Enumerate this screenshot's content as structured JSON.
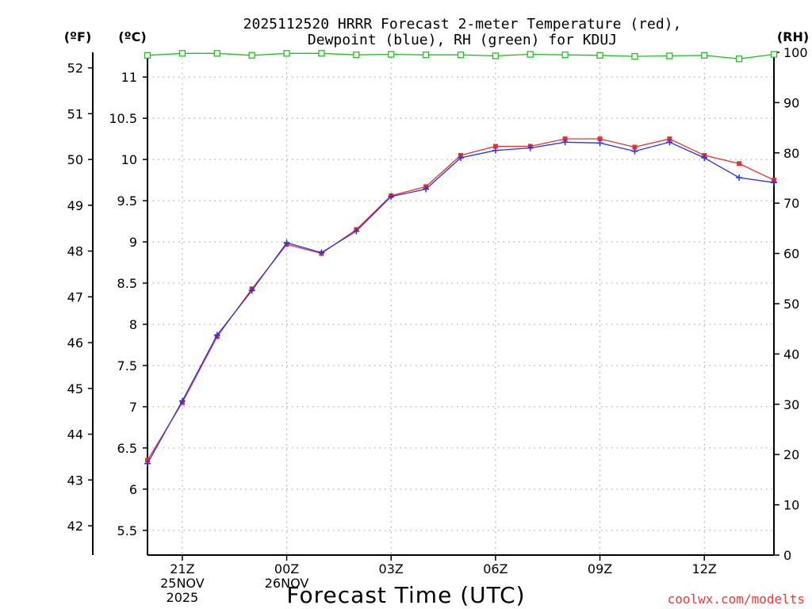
{
  "chart_data": {
    "type": "line",
    "title": "2025112520 HRRR Forecast 2-meter Temperature (red),",
    "subtitle": "Dewpoint (blue), RH (green) for KDUJ",
    "xlabel": "Forecast Time (UTC)",
    "credit": "coolwx.com/modelts",
    "units": {
      "fahrenheit": "(ºF)",
      "celsius": "(ºC)",
      "rh": "(RH)"
    },
    "x": [
      20,
      21,
      22,
      23,
      24,
      25,
      26,
      27,
      28,
      29,
      30,
      31,
      32,
      33,
      34,
      35,
      36,
      37,
      38
    ],
    "xlim": [
      20,
      38
    ],
    "x_ticks": [
      {
        "x": 21,
        "lines": [
          "21Z",
          "25NOV",
          "2025"
        ]
      },
      {
        "x": 24,
        "lines": [
          "00Z",
          "26NOV"
        ]
      },
      {
        "x": 27,
        "lines": [
          "03Z"
        ]
      },
      {
        "x": 30,
        "lines": [
          "06Z"
        ]
      },
      {
        "x": 33,
        "lines": [
          "09Z"
        ]
      },
      {
        "x": 36,
        "lines": [
          "12Z"
        ]
      }
    ],
    "y_celsius": {
      "lim": [
        5.2,
        11.3
      ],
      "ticks": [
        5.5,
        6,
        6.5,
        7,
        7.5,
        8,
        8.5,
        9,
        9.5,
        10,
        10.5,
        11
      ],
      "labels": [
        "5.5",
        "6",
        "6.5",
        "7",
        "7.5",
        "8",
        "8.5",
        "9",
        "9.5",
        "10",
        "10.5",
        "11"
      ]
    },
    "y_fahrenheit": {
      "ticks": [
        42,
        43,
        44,
        45,
        46,
        47,
        48,
        49,
        50,
        51,
        52
      ],
      "labels": [
        "42",
        "43",
        "44",
        "45",
        "46",
        "47",
        "48",
        "49",
        "50",
        "51",
        "52"
      ]
    },
    "y_rh": {
      "lim": [
        0,
        100
      ],
      "ticks": [
        0,
        10,
        20,
        30,
        40,
        50,
        60,
        70,
        80,
        90,
        100
      ],
      "labels": [
        "0",
        "10",
        "20",
        "30",
        "40",
        "50",
        "60",
        "70",
        "80",
        "90",
        "100"
      ]
    },
    "series": [
      {
        "name": "Temperature",
        "axis": "celsius",
        "color": "#e83030",
        "marker": "square",
        "values": [
          6.35,
          7.05,
          7.85,
          8.43,
          8.97,
          8.86,
          9.15,
          9.56,
          9.67,
          10.05,
          10.16,
          10.16,
          10.25,
          10.25,
          10.15,
          10.25,
          10.05,
          9.95,
          9.75
        ]
      },
      {
        "name": "Dewpoint",
        "axis": "celsius",
        "color": "#2436e0",
        "marker": "plus",
        "values": [
          6.31,
          7.07,
          7.87,
          8.41,
          8.99,
          8.87,
          9.13,
          9.55,
          9.64,
          10.02,
          10.11,
          10.14,
          10.21,
          10.2,
          10.1,
          10.21,
          10.02,
          9.78,
          9.72
        ]
      },
      {
        "name": "RH",
        "axis": "rh",
        "color": "#21c021",
        "marker": "open-square",
        "values": [
          99.4,
          99.8,
          99.8,
          99.4,
          99.8,
          99.8,
          99.5,
          99.6,
          99.5,
          99.5,
          99.3,
          99.6,
          99.5,
          99.4,
          99.2,
          99.3,
          99.4,
          98.7,
          99.6
        ]
      }
    ]
  }
}
